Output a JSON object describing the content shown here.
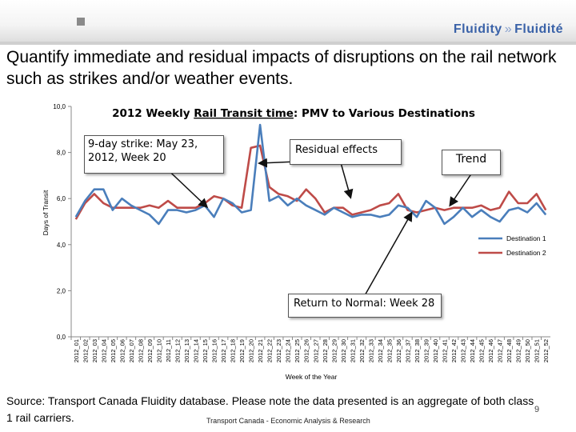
{
  "header": {
    "logo_left": "Fluidity",
    "logo_separator": "»",
    "logo_right": "Fluidité"
  },
  "headline": "Quantify immediate and residual impacts of disruptions on the rail network such as strikes and/or weather events.",
  "callouts": {
    "strike": "9-day strike: May 23, 2012, Week 20",
    "residual": "Residual effects",
    "trend": "Trend",
    "return": "Return to Normal: Week 28"
  },
  "footer": {
    "source": "Source: Transport Canada Fluidity database. Please note the data presented is an aggregate of both class 1 rail carriers.",
    "credit": "Transport Canada - Economic Analysis & Research",
    "page_number": "9"
  },
  "colors": {
    "destination_1": "#4a7ebb",
    "destination_2": "#be4b48",
    "arrow": "#111111"
  },
  "chart_data": {
    "type": "line",
    "title_prefix": "2012 Weekly ",
    "title_underlined": "Rail Transit time",
    "title_suffix": ": PMV to Various Destinations",
    "xlabel": "Week of the Year",
    "ylabel": "Days of Transit",
    "ylim": [
      0,
      10
    ],
    "yticks": [
      "0,0",
      "2,0",
      "4,0",
      "6,0",
      "8,0",
      "10,0"
    ],
    "grid": false,
    "legend_position": "right",
    "categories": [
      "2012_01",
      "2012_02",
      "2012_03",
      "2012_04",
      "2012_05",
      "2012_06",
      "2012_07",
      "2012_08",
      "2012_09",
      "2012_10",
      "2012_11",
      "2012_12",
      "2012_13",
      "2012_14",
      "2012_15",
      "2012_16",
      "2012_17",
      "2012_18",
      "2012_19",
      "2012_20",
      "2012_21",
      "2012_22",
      "2012_23",
      "2012_24",
      "2012_25",
      "2012_26",
      "2012_27",
      "2012_28",
      "2012_29",
      "2012_30",
      "2012_31",
      "2012_32",
      "2012_33",
      "2012_34",
      "2012_35",
      "2012_36",
      "2012_37",
      "2012_38",
      "2012_39",
      "2012_40",
      "2012_41",
      "2012_42",
      "2012_43",
      "2012_44",
      "2012_45",
      "2012_46",
      "2012_47",
      "2012_48",
      "2012_49",
      "2012_50",
      "2012_51",
      "2012_52"
    ],
    "series": [
      {
        "name": "Destination 1",
        "values": [
          5.2,
          5.9,
          6.4,
          6.4,
          5.5,
          6.0,
          5.7,
          5.5,
          5.3,
          4.9,
          5.5,
          5.5,
          5.4,
          5.5,
          5.7,
          5.2,
          6.0,
          5.8,
          5.4,
          5.5,
          9.2,
          5.9,
          6.1,
          5.7,
          6.0,
          5.7,
          5.5,
          5.3,
          5.6,
          5.4,
          5.2,
          5.3,
          5.3,
          5.2,
          5.3,
          5.7,
          5.6,
          5.2,
          5.9,
          5.6,
          4.9,
          5.2,
          5.6,
          5.2,
          5.5,
          5.2,
          5.0,
          5.5,
          5.6,
          5.4,
          5.8,
          5.3
        ]
      },
      {
        "name": "Destination 2",
        "values": [
          5.1,
          5.8,
          6.2,
          5.8,
          5.6,
          5.6,
          5.6,
          5.6,
          5.7,
          5.6,
          5.9,
          5.6,
          5.6,
          5.6,
          5.8,
          6.1,
          6.0,
          5.7,
          5.6,
          8.2,
          8.3,
          6.5,
          6.2,
          6.1,
          5.9,
          6.4,
          6.0,
          5.4,
          5.6,
          5.6,
          5.3,
          5.4,
          5.5,
          5.7,
          5.8,
          6.2,
          5.5,
          5.4,
          5.5,
          5.6,
          5.5,
          5.6,
          5.6,
          5.6,
          5.7,
          5.5,
          5.6,
          6.3,
          5.8,
          5.8,
          6.2,
          5.5
        ]
      }
    ]
  }
}
